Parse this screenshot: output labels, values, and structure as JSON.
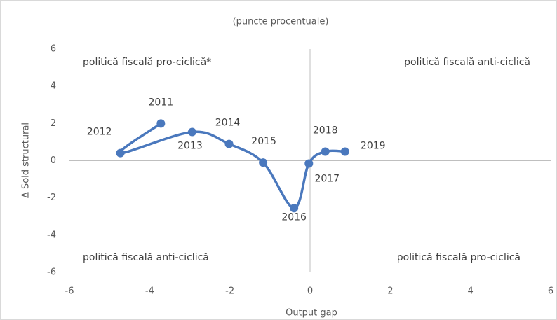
{
  "chart_data": {
    "type": "scatter-line",
    "subtitle": "(puncte procentuale)",
    "x_label": "Output gap",
    "y_label": "Δ Sold structural",
    "series": [
      {
        "color": "#4a78bd",
        "labels": [
          "2011",
          "2012",
          "2013",
          "2014",
          "2015",
          "2016",
          "2017",
          "2018",
          "2019"
        ],
        "x": [
          -3.72,
          -4.73,
          -2.94,
          -2.02,
          -1.17,
          -0.4,
          -0.03,
          0.38,
          0.87
        ],
        "values": [
          2.0,
          0.41,
          1.54,
          0.9,
          -0.1,
          -2.55,
          -0.15,
          0.49,
          0.49
        ]
      }
    ],
    "xlim": [
      -6,
      6
    ],
    "xticks": [
      -6,
      -4,
      -2,
      0,
      2,
      4,
      6
    ],
    "ylim": [
      -6,
      6
    ],
    "yticks": [
      -6,
      -4,
      -2,
      0,
      2,
      4,
      6
    ],
    "annotations": [
      "politică fiscală pro-ciclică*",
      "politică fiscală anti-ciclică",
      "politică fiscală anti-ciclică",
      "politică fiscală pro-ciclică"
    ]
  }
}
